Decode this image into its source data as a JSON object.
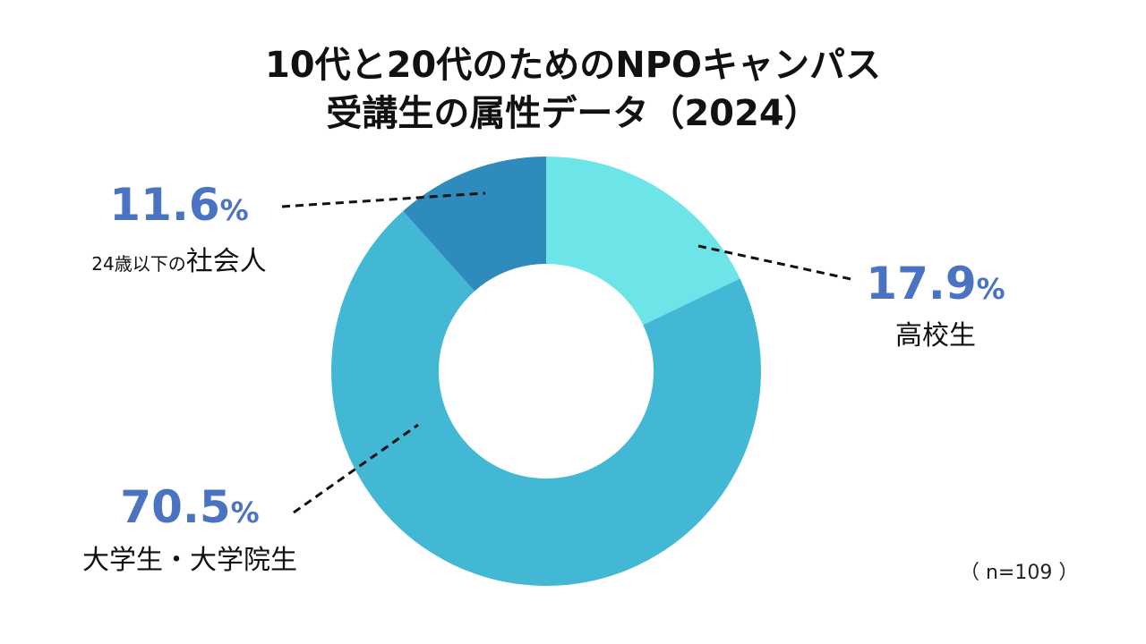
{
  "title_line1": "10代と20代のためのNPOキャンパス",
  "title_line2": "受講生の属性データ（2024）",
  "sample_note": "（ n=109 ）",
  "chart_data": {
    "type": "pie",
    "donut": true,
    "unit": "%",
    "slices": [
      {
        "label": "高校生",
        "value": 17.9,
        "value_text": "17.9",
        "color": "#6de4e8"
      },
      {
        "label": "大学生・大学院生",
        "value": 70.5,
        "value_text": "70.5",
        "color": "#42b8d5"
      },
      {
        "label_small": "24歳以下の",
        "label": "社会人",
        "value": 11.6,
        "value_text": "11.6",
        "color": "#2e8bbc"
      }
    ]
  }
}
